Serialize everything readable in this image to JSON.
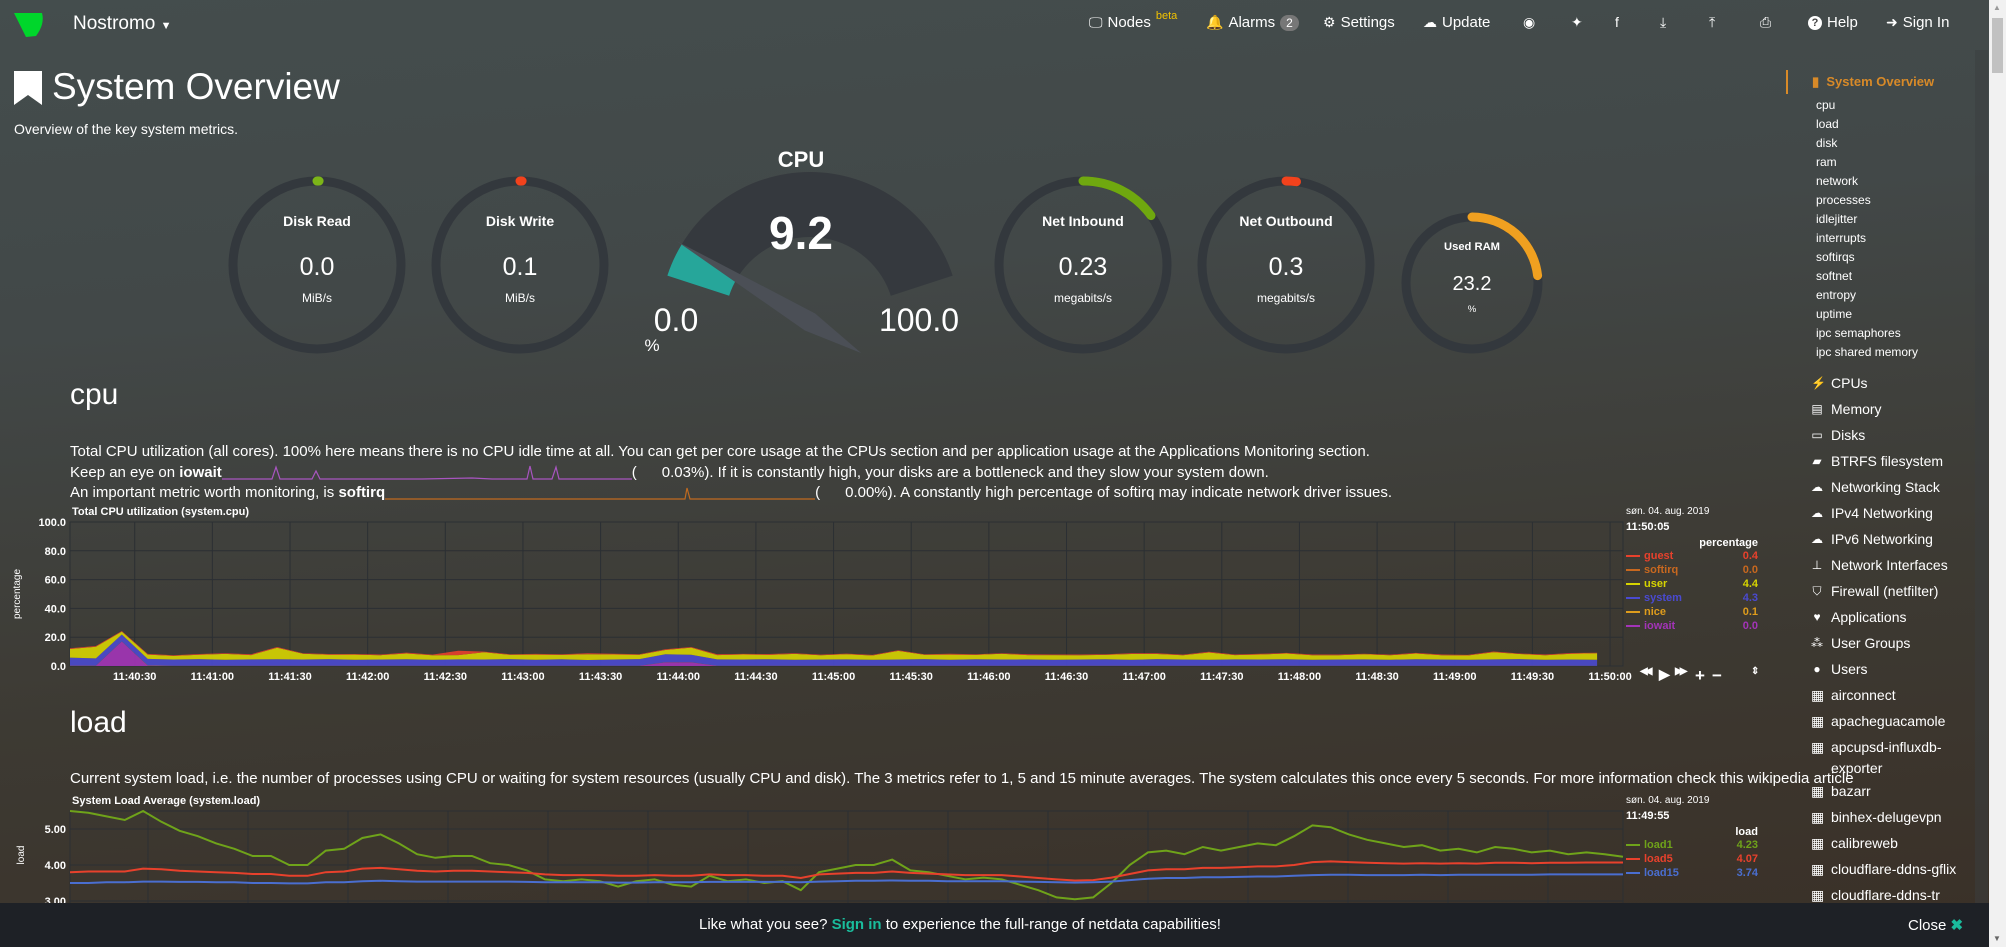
{
  "header": {
    "brand": "Nostromo",
    "nav": [
      {
        "label": "Nodes",
        "icon": "monitor-icon",
        "sup": "beta"
      },
      {
        "label": "Alarms",
        "icon": "bell-icon",
        "badge": "2"
      },
      {
        "label": "Settings",
        "icon": "gear-icon"
      },
      {
        "label": "Update",
        "icon": "cloud-download-icon"
      },
      {
        "label": "",
        "icon": "github-icon"
      },
      {
        "label": "",
        "icon": "twitter-icon"
      },
      {
        "label": "",
        "icon": "facebook-icon"
      },
      {
        "label": "",
        "icon": "download-icon"
      },
      {
        "label": "",
        "icon": "upload-icon"
      },
      {
        "label": "",
        "icon": "print-icon"
      },
      {
        "label": "Help",
        "icon": "question-icon"
      },
      {
        "label": "Sign In",
        "icon": "sign-in-icon"
      }
    ]
  },
  "page": {
    "title": "System Overview",
    "subtitle": "Overview of the key system metrics."
  },
  "gauges": [
    {
      "title": "Disk Read",
      "value": "0.0",
      "unit": "MiB/s",
      "fraction": 0.0,
      "color": "#7cb518"
    },
    {
      "title": "Disk Write",
      "value": "0.1",
      "unit": "MiB/s",
      "fraction": 0.0,
      "color": "#f2421c"
    },
    {
      "title": "Net Inbound",
      "value": "0.23",
      "unit": "megabits/s",
      "fraction": 0.15,
      "color": "#6fa80f"
    },
    {
      "title": "Net Outbound",
      "value": "0.3",
      "unit": "megabits/s",
      "fraction": 0.02,
      "color": "#f2421c"
    },
    {
      "title": "Used RAM",
      "value": "23.2",
      "unit": "%",
      "fraction": 0.232,
      "color": "#f0a020"
    }
  ],
  "cpu_gauge": {
    "title": "CPU",
    "value": "9.2",
    "min": "0.0",
    "max": "100.0",
    "unit": "%",
    "fraction": 0.092,
    "color": "#26a69a"
  },
  "cpu_section": {
    "heading": "cpu",
    "line1": "Total CPU utilization (all cores). 100% here means there is no CPU idle time at all. You can get per core usage at the CPUs section and per application usage at the Applications Monitoring section.",
    "line2_pre": "Keep an eye on ",
    "line2_bold": "iowait",
    "line2_val": "(      0.03%)",
    "line2_post": ". If it is constantly high, your disks are a bottleneck and they slow your system down.",
    "line3_pre": "An important metric worth monitoring, is ",
    "line3_bold": "softirq",
    "line3_val": "(      0.00%)",
    "line3_post": ". A constantly high percentage of softirq may indicate network driver issues."
  },
  "load_section": {
    "heading": "load",
    "line1": "Current system load, i.e. the number of processes using CPU or waiting for system resources (usually CPU and disk). The 3 metrics refer to 1, 5 and 15 minute averages. The system calculates this once every 5 seconds. For more information check this wikipedia article"
  },
  "chart_data": [
    {
      "type": "area",
      "stacked": true,
      "title": "Total CPU utilization (system.cpu)",
      "ylabel": "percentage",
      "ylim": [
        0,
        100
      ],
      "yticks": [
        "0.0",
        "20.0",
        "40.0",
        "60.0",
        "80.0",
        "100.0"
      ],
      "xlim": [
        "11:40:05",
        "11:50:05"
      ],
      "x_interval_s": 10,
      "xticks": [
        "11:40:30",
        "11:41:00",
        "11:41:30",
        "11:42:00",
        "11:42:30",
        "11:43:00",
        "11:43:30",
        "11:44:00",
        "11:44:30",
        "11:45:00",
        "11:45:30",
        "11:46:00",
        "11:46:30",
        "11:47:00",
        "11:47:30",
        "11:48:00",
        "11:48:30",
        "11:49:00",
        "11:49:30",
        "11:50:00"
      ],
      "legend": {
        "date": "søn. 04. aug. 2019",
        "time": "11:50:05",
        "unit": "percentage"
      },
      "series": [
        {
          "name": "iowait",
          "color": "#a334b8",
          "last": "0.0",
          "values": [
            0.2,
            0.2,
            17,
            0.3,
            0.1,
            0.1,
            0.1,
            0.1,
            0.1,
            0.1,
            0.1,
            0.1,
            0.1,
            0.1,
            0.1,
            0.1,
            0.1,
            0.1,
            0.1,
            0.1,
            0.1,
            0.1,
            0.1,
            2.5,
            2.5,
            0.1,
            0.1,
            0.1,
            0.1,
            0.1,
            0.1,
            0.1,
            0.1,
            0.1,
            0.1,
            0.1,
            0.1,
            0.1,
            0.1,
            0.1,
            0.1,
            0.1,
            0.1,
            0.1,
            0.1,
            0.1,
            0.1,
            0.1,
            0.1,
            0.1,
            0.1,
            0.1,
            0.1,
            0.1,
            0.1,
            0.1,
            0.1,
            0.1,
            0.1,
            0.0
          ]
        },
        {
          "name": "nice",
          "color": "#de9c1c",
          "last": "0.1",
          "values": [
            0.1,
            0.1,
            0.1,
            0.1,
            0.1,
            0.1,
            0.1,
            0.1,
            0.1,
            0.1,
            0.1,
            0.1,
            0.1,
            0.1,
            0.1,
            0.1,
            0.1,
            0.1,
            0.1,
            0.1,
            0.1,
            0.1,
            0.1,
            0.1,
            0.1,
            0.1,
            0.1,
            0.1,
            0.1,
            0.1,
            0.1,
            0.1,
            0.1,
            0.1,
            0.1,
            0.1,
            0.1,
            0.1,
            0.1,
            0.1,
            0.1,
            0.1,
            0.1,
            0.1,
            0.1,
            0.1,
            0.1,
            0.1,
            0.1,
            0.1,
            0.1,
            0.1,
            0.1,
            0.1,
            0.1,
            0.1,
            0.1,
            0.1,
            0.1,
            0.1
          ]
        },
        {
          "name": "system",
          "color": "#4a4ad0",
          "last": "4.3",
          "values": [
            5.5,
            5,
            4.8,
            4.5,
            4.3,
            4.6,
            4.2,
            4.4,
            4.5,
            4.3,
            4.6,
            4.2,
            4.3,
            4.5,
            4.1,
            4.4,
            4.3,
            4.6,
            4.2,
            4.5,
            4.0,
            4.3,
            4.6,
            5.5,
            5.2,
            4.4,
            4.3,
            4.5,
            4.2,
            4.3,
            4.4,
            4.1,
            4.3,
            4.6,
            4.2,
            4.5,
            4.3,
            4.4,
            4.2,
            4.3,
            4.5,
            4.1,
            4.6,
            4.3,
            4.2,
            4.4,
            4.3,
            4.5,
            4.2,
            4.3,
            4.4,
            4.2,
            4.5,
            4.3,
            4.1,
            4.4,
            4.6,
            4.2,
            4.3,
            4.3
          ]
        },
        {
          "name": "user",
          "color": "#d7d400",
          "last": "4.4",
          "values": [
            6,
            8,
            2,
            3,
            2.5,
            3,
            4,
            3,
            8,
            4,
            3,
            3.5,
            3,
            4,
            3.2,
            3,
            5,
            3,
            3.5,
            3,
            4,
            3.5,
            3,
            3,
            5,
            3,
            3.5,
            3,
            4,
            3,
            3.5,
            3,
            6,
            3,
            3.5,
            3,
            4,
            3,
            3.2,
            3,
            3,
            4,
            3.5,
            3,
            5,
            3,
            3.5,
            4,
            3,
            3,
            3.5,
            3,
            4,
            3,
            3,
            5,
            3.5,
            3,
            4,
            4.4
          ]
        },
        {
          "name": "softirq",
          "color": "#c8681f",
          "last": "0.0",
          "values": [
            0,
            0,
            0,
            0,
            0,
            0,
            0,
            0,
            0,
            0,
            0,
            0,
            0,
            0,
            0,
            0,
            0,
            0,
            0,
            0,
            0,
            0,
            0,
            0,
            0,
            0,
            0,
            0,
            0,
            0,
            0,
            0,
            0,
            0,
            0,
            0,
            0,
            0,
            0,
            0,
            0,
            0,
            0,
            0,
            0,
            0,
            0,
            0,
            0,
            0,
            0,
            0,
            0,
            0,
            0,
            0,
            0,
            0,
            0,
            0
          ]
        },
        {
          "name": "guest",
          "color": "#e8412c",
          "last": "0.4",
          "values": [
            0.5,
            0.6,
            0.4,
            0.5,
            0.4,
            0.5,
            0.4,
            0.6,
            0.5,
            0.4,
            0.5,
            0.4,
            0.5,
            0.6,
            0.4,
            3,
            0.5,
            0.4,
            0.5,
            0.4,
            0.6,
            0.5,
            0.4,
            0.5,
            0.4,
            0.5,
            0.4,
            0.6,
            0.5,
            0.4,
            0.5,
            0.4,
            0.5,
            0.4,
            0.6,
            0.5,
            0.4,
            0.5,
            0.4,
            0.5,
            0.4,
            0.6,
            0.5,
            0.4,
            0.5,
            0.4,
            0.5,
            0.4,
            0.6,
            0.5,
            0.4,
            0.5,
            0.4,
            0.5,
            0.4,
            0.5,
            0.4,
            0.6,
            0.5,
            0.4
          ]
        }
      ]
    },
    {
      "type": "line",
      "title": "System Load Average (system.load)",
      "ylabel": "load",
      "ylim": [
        2.5,
        5.5
      ],
      "yticks": [
        "3.00",
        "4.00",
        "5.00"
      ],
      "legend": {
        "date": "søn. 04. aug. 2019",
        "time": "11:49:55",
        "unit": "load"
      },
      "series": [
        {
          "name": "load1",
          "color": "#6fa31a",
          "last": "4.23",
          "values": [
            5.5,
            5.45,
            5.35,
            5.25,
            5.5,
            5.2,
            4.95,
            4.8,
            4.6,
            4.45,
            4.25,
            4.25,
            4.0,
            4.0,
            4.4,
            4.45,
            4.75,
            4.85,
            4.6,
            4.3,
            4.2,
            4.25,
            4.25,
            4.05,
            4.0,
            3.85,
            3.6,
            3.55,
            3.6,
            3.55,
            3.4,
            3.55,
            3.6,
            3.45,
            3.4,
            3.7,
            3.55,
            3.6,
            3.5,
            3.55,
            3.3,
            3.8,
            3.9,
            4.0,
            4.0,
            4.15,
            3.85,
            3.8,
            3.7,
            3.6,
            3.65,
            3.6,
            3.45,
            3.3,
            3.1,
            3.05,
            3.1,
            3.5,
            4.0,
            4.35,
            4.4,
            4.3,
            4.5,
            4.4,
            4.5,
            4.6,
            4.55,
            4.8,
            5.1,
            5.05,
            4.85,
            4.7,
            4.6,
            4.5,
            4.55,
            4.4,
            4.45,
            4.35,
            4.5,
            4.45,
            4.35,
            4.4,
            4.3,
            4.35,
            4.3,
            4.23
          ]
        },
        {
          "name": "load5",
          "color": "#e8412c",
          "last": "4.07",
          "values": [
            3.8,
            3.82,
            3.82,
            3.82,
            3.9,
            3.88,
            3.84,
            3.82,
            3.8,
            3.78,
            3.75,
            3.75,
            3.7,
            3.7,
            3.8,
            3.82,
            3.9,
            3.92,
            3.88,
            3.84,
            3.82,
            3.84,
            3.84,
            3.82,
            3.8,
            3.78,
            3.74,
            3.72,
            3.72,
            3.72,
            3.7,
            3.7,
            3.72,
            3.7,
            3.7,
            3.74,
            3.72,
            3.72,
            3.7,
            3.7,
            3.64,
            3.74,
            3.76,
            3.78,
            3.78,
            3.82,
            3.78,
            3.76,
            3.74,
            3.72,
            3.72,
            3.72,
            3.68,
            3.64,
            3.6,
            3.57,
            3.58,
            3.65,
            3.75,
            3.85,
            3.88,
            3.88,
            3.92,
            3.92,
            3.94,
            3.96,
            3.96,
            4.0,
            4.08,
            4.1,
            4.08,
            4.06,
            4.05,
            4.04,
            4.05,
            4.04,
            4.05,
            4.04,
            4.06,
            4.06,
            4.05,
            4.06,
            4.06,
            4.07,
            4.07,
            4.07
          ]
        },
        {
          "name": "load15",
          "color": "#4a6ed0",
          "last": "3.74",
          "values": [
            3.5,
            3.5,
            3.52,
            3.52,
            3.54,
            3.54,
            3.53,
            3.53,
            3.52,
            3.52,
            3.5,
            3.5,
            3.49,
            3.49,
            3.52,
            3.52,
            3.55,
            3.56,
            3.55,
            3.54,
            3.54,
            3.54,
            3.54,
            3.54,
            3.54,
            3.53,
            3.52,
            3.52,
            3.52,
            3.52,
            3.51,
            3.51,
            3.52,
            3.52,
            3.52,
            3.53,
            3.53,
            3.53,
            3.53,
            3.53,
            3.52,
            3.54,
            3.55,
            3.56,
            3.56,
            3.57,
            3.56,
            3.56,
            3.55,
            3.55,
            3.55,
            3.55,
            3.54,
            3.53,
            3.52,
            3.51,
            3.52,
            3.54,
            3.58,
            3.62,
            3.64,
            3.64,
            3.66,
            3.66,
            3.67,
            3.68,
            3.68,
            3.7,
            3.72,
            3.73,
            3.73,
            3.72,
            3.72,
            3.72,
            3.73,
            3.72,
            3.73,
            3.73,
            3.73,
            3.73,
            3.73,
            3.74,
            3.74,
            3.74,
            3.74,
            3.74
          ]
        }
      ]
    }
  ],
  "chart_controls": [
    "rewind-icon",
    "play-icon",
    "fast-forward-icon",
    "zoom-in-icon",
    "zoom-out-icon",
    "resize-icon"
  ],
  "sidebar": {
    "active": "System Overview",
    "subitems": [
      "cpu",
      "load",
      "disk",
      "ram",
      "network",
      "processes",
      "idlejitter",
      "interrupts",
      "softirqs",
      "softnet",
      "entropy",
      "uptime",
      "ipc semaphores",
      "ipc shared memory"
    ],
    "sections": [
      {
        "label": "CPUs",
        "icon": "bolt-icon"
      },
      {
        "label": "Memory",
        "icon": "memory-icon"
      },
      {
        "label": "Disks",
        "icon": "hdd-icon"
      },
      {
        "label": "BTRFS filesystem",
        "icon": "folder-icon"
      },
      {
        "label": "Networking Stack",
        "icon": "cloud-icon"
      },
      {
        "label": "IPv4 Networking",
        "icon": "cloud-icon"
      },
      {
        "label": "IPv6 Networking",
        "icon": "cloud-icon"
      },
      {
        "label": "Network Interfaces",
        "icon": "sitemap-icon"
      },
      {
        "label": "Firewall (netfilter)",
        "icon": "shield-icon"
      },
      {
        "label": "Applications",
        "icon": "heartbeat-icon"
      },
      {
        "label": "User Groups",
        "icon": "users-icon"
      },
      {
        "label": "Users",
        "icon": "user-icon"
      }
    ],
    "apps": [
      "airconnect",
      "apacheguacamole",
      "apcupsd-influxdb-exporter",
      "bazarr",
      "binhex-delugevpn",
      "calibreweb",
      "cloudflare-ddns-gflix",
      "cloudflare-ddns-tr"
    ]
  },
  "footer": {
    "pre": "Like what you see? ",
    "link": "Sign in",
    "post": " to experience the full-range of netdata capabilities!",
    "close": "Close",
    "accent": "#1abc9c"
  }
}
